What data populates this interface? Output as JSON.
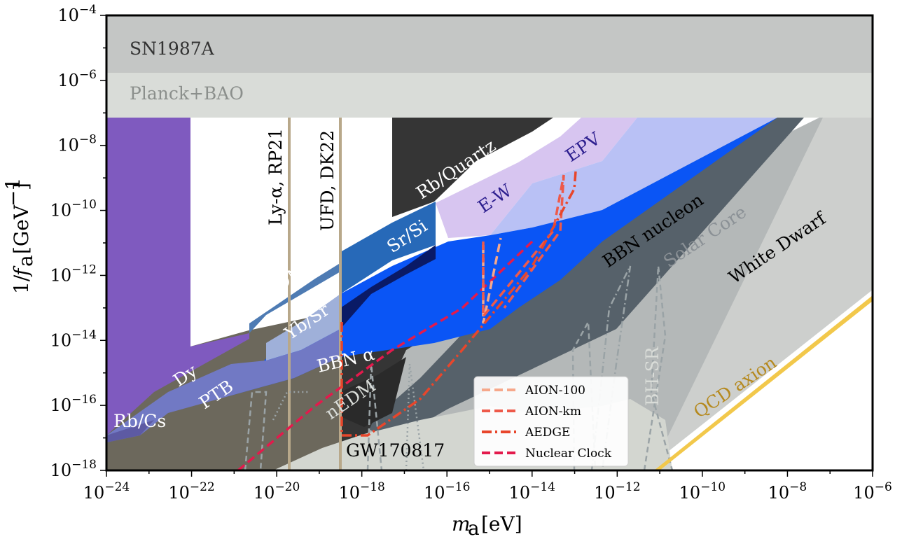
{
  "chart_data": {
    "type": "area",
    "xlabel": "m_a [eV]",
    "ylabel": "1/f_a [GeV^-1]",
    "x_scale": "log",
    "y_scale": "log",
    "xlim": [
      1e-24,
      1e-06
    ],
    "ylim": [
      1e-18,
      0.0001
    ],
    "grid": false,
    "x_tick_labels": [
      "10^-24",
      "10^-22",
      "10^-20",
      "10^-18",
      "10^-16",
      "10^-14",
      "10^-12",
      "10^-10",
      "10^-8",
      "10^-6"
    ],
    "y_tick_labels": [
      "10^-4",
      "10^-6",
      "10^-8",
      "10^-10",
      "10^-12",
      "10^-14",
      "10^-16",
      "10^-18"
    ],
    "regions": [
      {
        "name": "SN1987A",
        "color": "#c4c6c5",
        "label": "SN1987A",
        "points": [
          [
            1e-24,
            0.0001
          ],
          [
            1e-06,
            0.0001
          ],
          [
            1e-06,
            1.6e-06
          ],
          [
            1e-24,
            1.6e-06
          ]
        ]
      },
      {
        "name": "Planck+BAO",
        "color": "#d9dcd8",
        "label": "Planck+BAO",
        "points": [
          [
            1e-24,
            1.6e-06
          ],
          [
            1e-06,
            1.6e-06
          ],
          [
            1e-06,
            6e-08
          ],
          [
            1e-24,
            6e-08
          ]
        ]
      },
      {
        "name": "White Dwarf",
        "color": "#cccdcc",
        "label": "White Dwarf",
        "points": [
          [
            1e-18,
            1e-18
          ],
          [
            3e-12,
            1e-18
          ],
          [
            1e-06,
            1.2e-10
          ],
          [
            1e-06,
            6e-08
          ],
          [
            5e-09,
            6e-08
          ]
        ]
      },
      {
        "name": "Solar Core",
        "color": "#b7bbbb",
        "label": "Solar Core",
        "points": [
          [
            1e-19,
            1e-18
          ],
          [
            3e-12,
            1e-18
          ],
          [
            3e-08,
            6e-08
          ],
          [
            2e-09,
            6e-08
          ]
        ]
      },
      {
        "name": "BBN nucleon",
        "color": "#56616a",
        "label": "BBN nucleon",
        "points": [
          [
            3e-17,
            1e-17
          ],
          [
            1.2e-13,
            1e-17
          ],
          [
            5e-09,
            6e-08
          ],
          [
            1e-09,
            6e-08
          ]
        ]
      },
      {
        "name": "UFD, DK22 bound",
        "color": "#6e6a5e",
        "label": "UFD, DK22",
        "points": [
          [
            1e-22,
            1.5e-14
          ],
          [
            1e-22,
            6e-08
          ],
          [
            1e-24,
            6e-08
          ],
          [
            1e-24,
            1e-18
          ],
          [
            3e-16,
            1e-18
          ],
          [
            3e-16,
            1e-17
          ],
          [
            3e-17,
            1e-17
          ]
        ]
      },
      {
        "name": "Rb/Quartz",
        "color": "#353535",
        "label": "Rb/Quartz",
        "points": [
          [
            3.5e-19,
            1e-18
          ],
          [
            3.5e-19,
            6e-08
          ],
          [
            3e-15,
            6e-08
          ],
          [
            3e-15,
            1e-10
          ],
          [
            2e-17,
            1e-10
          ],
          [
            2e-17,
            2e-15
          ],
          [
            3e-19,
            1e-18
          ]
        ]
      },
      {
        "name": "Dy",
        "color": "#7f5abf",
        "label": "Dy",
        "points": [
          [
            1e-24,
            1.2e-17
          ],
          [
            1e-24,
            6e-08
          ],
          [
            1e-22,
            6e-08
          ],
          [
            1e-22,
            1.5e-14
          ],
          [
            3e-20,
            1e-14
          ],
          [
            1e-18,
            5e-14
          ],
          [
            1e-19,
            4e-15
          ],
          [
            1e-22,
            1e-16
          ]
        ]
      },
      {
        "name": "HfF+ EDM",
        "color": "#4e7bb3",
        "label": "HfF⁺ EDM",
        "points": [
          [
            1.5e-21,
            1.2e-14
          ],
          [
            1.5e-21,
            3e-14
          ],
          [
            5e-16,
            2e-10
          ],
          [
            5e-16,
            1e-14
          ]
        ]
      },
      {
        "name": "E-W",
        "color": "#d7c5f0",
        "label": "E-W",
        "points": [
          [
            1e-19,
            3e-14
          ],
          [
            1e-14,
            3e-08
          ],
          [
            1e-13,
            6e-08
          ],
          [
            3e-13,
            6e-08
          ],
          [
            3e-14,
            1e-11
          ],
          [
            5e-15,
            2e-12
          ]
        ]
      },
      {
        "name": "EPV",
        "color": "#b9c1f5",
        "label": "EPV",
        "points": [
          [
            1e-16,
            1e-11
          ],
          [
            5e-16,
            2e-10
          ],
          [
            1e-15,
            1e-10
          ],
          [
            1e-14,
            3e-10
          ],
          [
            1e-13,
            6e-08
          ],
          [
            1e-10,
            6e-08
          ],
          [
            3e-12,
            1e-10
          ],
          [
            5e-15,
            2e-12
          ]
        ]
      },
      {
        "name": "BBN alpha",
        "color": "#0a55f5",
        "label": "BBN α",
        "points": [
          [
            3e-21,
            1e-16
          ],
          [
            3e-18,
            1e-14
          ],
          [
            3e-15,
            2e-13
          ],
          [
            1e-14,
            1e-12
          ],
          [
            3e-13,
            5e-11
          ],
          [
            2e-10,
            6e-08
          ],
          [
            3e-09,
            6e-08
          ],
          [
            1e-11,
            1e-11
          ],
          [
            3e-14,
            3e-14
          ],
          [
            1e-17,
            1e-15
          ]
        ]
      },
      {
        "name": "Sr/Si",
        "color": "#2769b8",
        "label": "Sr/Si",
        "points": [
          [
            1e-18,
            5e-14
          ],
          [
            1e-18,
            1e-12
          ],
          [
            5e-16,
            1e-10
          ],
          [
            5e-16,
            2e-11
          ],
          [
            1e-17,
            2e-13
          ]
        ]
      },
      {
        "name": "Yb/Sr",
        "color": "#9fb0d9",
        "label": "Yb/Sr",
        "points": [
          [
            4e-21,
            2e-15
          ],
          [
            4e-21,
            1e-14
          ],
          [
            5e-19,
            5e-13
          ],
          [
            1e-18,
            3e-14
          ]
        ]
      },
      {
        "name": "PTB",
        "color": "#7179c4",
        "label": "PTB",
        "points": [
          [
            1e-22,
            1e-17
          ],
          [
            1e-22,
            3e-16
          ],
          [
            3e-20,
            2e-15
          ],
          [
            1e-19,
            3e-15
          ],
          [
            1e-18,
            3e-14
          ],
          [
            1e-17,
            1e-15
          ],
          [
            3e-21,
            1e-16
          ]
        ]
      },
      {
        "name": "Rb/Cs",
        "color": "#5d5aa3",
        "label": "Rb/Cs",
        "points": [
          [
            1e-24,
            1e-17
          ],
          [
            1e-24,
            1.2e-17
          ],
          [
            1e-22,
            1e-16
          ],
          [
            3e-22,
            5e-17
          ],
          [
            1e-22,
            1e-17
          ]
        ]
      },
      {
        "name": "nEDM",
        "color": "#2a2a2a",
        "label": "nEDM",
        "points": [
          [
            1e-18,
            2e-17
          ],
          [
            1e-18,
            5e-16
          ],
          [
            5e-17,
            1e-15
          ],
          [
            3e-17,
            2e-17
          ]
        ]
      },
      {
        "name": "GW170817",
        "color": "#d3d6d0",
        "label": "GW170817",
        "points": [
          [
            1e-19,
            1e-18
          ],
          [
            1e-13,
            1e-18
          ],
          [
            3e-12,
            1e-17
          ],
          [
            1e-12,
            3e-17
          ],
          [
            3e-15,
            1e-17
          ],
          [
            1e-17,
            3e-17
          ],
          [
            3e-19,
            1e-18
          ]
        ]
      }
    ],
    "vertical_lines": [
      {
        "name": "Ly-α, RP21",
        "x": 2e-20,
        "color": "#b8a88a",
        "label": "Ly-α, RP21"
      },
      {
        "name": "UFD, DK22",
        "x": 3e-19,
        "color": "#b8a88a",
        "label": "UFD, DK22"
      }
    ],
    "lines": [
      {
        "name": "AION-100",
        "style": "dashed",
        "color": "#f6a88b",
        "points": [
          [
            1e-19,
            1e-18
          ],
          [
            3e-15,
            3e-14
          ],
          [
            1.2e-14,
            1e-11
          ],
          [
            6e-14,
            2e-11
          ],
          [
            1e-14,
            1e-11
          ]
        ]
      },
      {
        "name": "AION-km",
        "style": "dashed",
        "color": "#ee5a4a",
        "points": [
          [
            1e-19,
            1e-18
          ],
          [
            3e-15,
            3e-13
          ],
          [
            5e-15,
            1e-11
          ],
          [
            6e-14,
            3e-11
          ],
          [
            4e-13,
            6e-10
          ],
          [
            1e-13,
            1e-12
          ],
          [
            5e-14,
            3e-13
          ]
        ]
      },
      {
        "name": "AEDGE",
        "style": "dashdot",
        "color": "#e8462b",
        "points": [
          [
            1e-18,
            1e-17
          ],
          [
            3e-18,
            1e-17
          ],
          [
            1e-16,
            1e-16
          ],
          [
            3e-15,
            1e-14
          ],
          [
            3e-14,
            3e-13
          ],
          [
            3e-13,
            1e-11
          ],
          [
            1e-12,
            3e-10
          ],
          [
            1e-12,
            1e-09
          ]
        ]
      },
      {
        "name": "Nuclear Clock",
        "style": "dashed",
        "color": "#e31a4c",
        "points": [
          [
            1e-21,
            1e-18
          ],
          [
            1e-19,
            3e-16
          ],
          [
            1e-16,
            1e-13
          ],
          [
            1e-13,
            1e-11
          ]
        ]
      }
    ],
    "annotations": [
      "SN1987A",
      "Planck+BAO",
      "Ly-α, RP21",
      "UFD, DK22",
      "Rb/Quartz",
      "E-W",
      "EPV",
      "Sr/Si",
      "HfF⁺ EDM",
      "Yb/Sr",
      "BBN nucleon",
      "Solar Core",
      "White Dwarf",
      "BBN α",
      "Dy",
      "PTB",
      "Rb/Cs",
      "nEDM",
      "GW170817",
      "BH-SR",
      "QCD axion"
    ],
    "qcd_axion": {
      "label": "QCD axion",
      "points": [
        [
          3e-12,
          1e-18
        ],
        [
          1e-06,
          1.5e-13
        ]
      ],
      "color": "#f2c84b"
    },
    "legend": {
      "placement": "lower-center-right",
      "entries": [
        "AION-100",
        "AION-km",
        "AEDGE",
        "Nuclear Clock"
      ]
    }
  },
  "texts": {
    "sn1987a": "SN1987A",
    "planck": "Planck+BAO",
    "lya": "Ly-α, RP21",
    "ufd": "UFD, DK22",
    "rbquartz": "Rb/Quartz",
    "ew": "E-W",
    "epv": "EPV",
    "srsi": "Sr/Si",
    "hff": "HfF⁺ EDM",
    "ybsr": "Yb/Sr",
    "bbnn": "BBN nucleon",
    "solar": "Solar Core",
    "wd": "White Dwarf",
    "bbna": "BBN α",
    "dy": "Dy",
    "ptb": "PTB",
    "rbcs": "Rb/Cs",
    "nedm": "nEDM",
    "gw": "GW170817",
    "bhsr": "BH-SR",
    "qcd": "QCD axion",
    "legend_aion100": "AION-100",
    "legend_aionkm": "AION-km",
    "legend_aedge": "AEDGE",
    "legend_nuclear": "Nuclear Clock"
  }
}
